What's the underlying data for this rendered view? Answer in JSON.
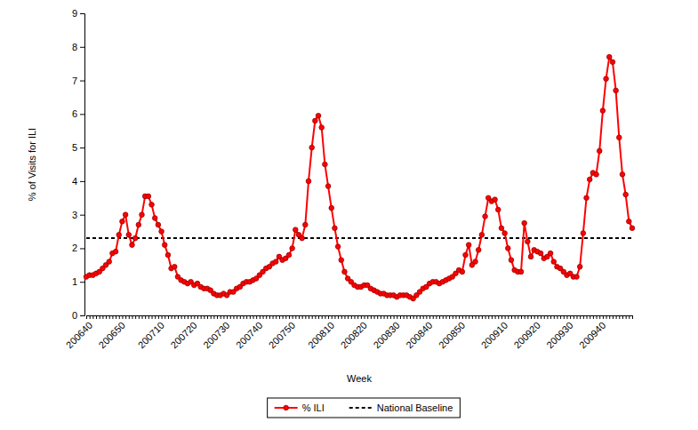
{
  "chart_data": {
    "type": "line",
    "x_label": "Week",
    "y_label": "% of Visits for ILI",
    "legend": "bottom",
    "grid": false,
    "ylim": [
      0,
      9
    ],
    "yticks": [
      0,
      1,
      2,
      3,
      4,
      5,
      6,
      7,
      8,
      9
    ],
    "categories": [
      "200640",
      null,
      null,
      null,
      null,
      null,
      null,
      null,
      null,
      null,
      "200650",
      null,
      null,
      null,
      null,
      null,
      null,
      null,
      null,
      null,
      null,
      null,
      "200710",
      null,
      null,
      null,
      null,
      null,
      null,
      null,
      null,
      null,
      "200720",
      null,
      null,
      null,
      null,
      null,
      null,
      null,
      null,
      null,
      "200730",
      null,
      null,
      null,
      null,
      null,
      null,
      null,
      null,
      null,
      "200740",
      null,
      null,
      null,
      null,
      null,
      null,
      null,
      null,
      null,
      "200750",
      null,
      null,
      null,
      null,
      null,
      null,
      null,
      null,
      null,
      null,
      null,
      "200810",
      null,
      null,
      null,
      null,
      null,
      null,
      null,
      null,
      null,
      "200820",
      null,
      null,
      null,
      null,
      null,
      null,
      null,
      null,
      null,
      "200830",
      null,
      null,
      null,
      null,
      null,
      null,
      null,
      null,
      null,
      "200840",
      null,
      null,
      null,
      null,
      null,
      null,
      null,
      null,
      null,
      "200850",
      null,
      null,
      null,
      null,
      null,
      null,
      null,
      null,
      null,
      null,
      null,
      null,
      "200910",
      null,
      null,
      null,
      null,
      null,
      null,
      null,
      null,
      null,
      "200920",
      null,
      null,
      null,
      null,
      null,
      null,
      null,
      null,
      null,
      "200930",
      null,
      null,
      null,
      null,
      null,
      null,
      null,
      null,
      null,
      "200940",
      null,
      null,
      null,
      null,
      null,
      null,
      null,
      null,
      null,
      null
    ],
    "series": [
      {
        "name": "% ILI",
        "color": "#ff0000",
        "marker": "circle",
        "line_style": "solid",
        "values": [
          1.15,
          1.2,
          1.2,
          1.25,
          1.3,
          1.4,
          1.5,
          1.6,
          1.85,
          1.9,
          2.4,
          2.8,
          3.0,
          2.4,
          2.1,
          2.3,
          2.7,
          3.0,
          3.55,
          3.55,
          3.3,
          2.9,
          2.7,
          2.5,
          2.1,
          1.8,
          1.4,
          1.45,
          1.15,
          1.05,
          1.0,
          0.95,
          1.0,
          0.9,
          0.95,
          0.85,
          0.8,
          0.8,
          0.75,
          0.65,
          0.6,
          0.6,
          0.65,
          0.6,
          0.7,
          0.7,
          0.8,
          0.85,
          0.95,
          1.0,
          1.0,
          1.05,
          1.1,
          1.2,
          1.3,
          1.4,
          1.45,
          1.55,
          1.6,
          1.75,
          1.65,
          1.7,
          1.8,
          2.0,
          2.55,
          2.4,
          2.3,
          2.7,
          4.0,
          5.0,
          5.8,
          5.95,
          5.6,
          4.5,
          3.85,
          3.2,
          2.6,
          2.05,
          1.65,
          1.3,
          1.1,
          1.0,
          0.9,
          0.85,
          0.85,
          0.9,
          0.9,
          0.8,
          0.75,
          0.7,
          0.65,
          0.65,
          0.6,
          0.6,
          0.6,
          0.55,
          0.6,
          0.6,
          0.6,
          0.55,
          0.5,
          0.6,
          0.7,
          0.8,
          0.85,
          0.95,
          1.0,
          1.0,
          0.95,
          1.0,
          1.05,
          1.1,
          1.15,
          1.25,
          1.35,
          1.3,
          1.8,
          2.1,
          1.5,
          1.6,
          1.95,
          2.4,
          2.95,
          3.5,
          3.4,
          3.45,
          3.15,
          2.6,
          2.45,
          2.0,
          1.65,
          1.35,
          1.3,
          1.3,
          2.75,
          2.2,
          1.75,
          1.95,
          1.9,
          1.85,
          1.7,
          1.75,
          1.85,
          1.6,
          1.45,
          1.4,
          1.3,
          1.2,
          1.25,
          1.15,
          1.15,
          1.45,
          2.45,
          3.5,
          4.05,
          4.25,
          4.2,
          4.9,
          6.1,
          7.05,
          7.7,
          7.55,
          6.7,
          5.3,
          4.2,
          3.6,
          2.8,
          2.6
        ]
      },
      {
        "name": "National Baseline",
        "color": "#000000",
        "marker": "none",
        "line_style": "dashed",
        "values": [
          2.3,
          2.3,
          2.3,
          2.3,
          2.3,
          2.3,
          2.3,
          2.3,
          2.3,
          2.3,
          2.3,
          2.3,
          2.3,
          2.3,
          2.3,
          2.3,
          2.3,
          2.3,
          2.3,
          2.3,
          2.3,
          2.3,
          2.3,
          2.3,
          2.3,
          2.3,
          2.3,
          2.3,
          2.3,
          2.3,
          2.3,
          2.3,
          2.3,
          2.3,
          2.3,
          2.3,
          2.3,
          2.3,
          2.3,
          2.3,
          2.3,
          2.3,
          2.3,
          2.3,
          2.3,
          2.3,
          2.3,
          2.3,
          2.3,
          2.3,
          2.3,
          2.3,
          2.3,
          2.3,
          2.3,
          2.3,
          2.3,
          2.3,
          2.3,
          2.3,
          2.3,
          2.3,
          2.3,
          2.3,
          2.3,
          2.3,
          2.3,
          2.3,
          2.3,
          2.3,
          2.3,
          2.3,
          2.3,
          2.3,
          2.3,
          2.3,
          2.3,
          2.3,
          2.3,
          2.3,
          2.3,
          2.3,
          2.3,
          2.3,
          2.3,
          2.3,
          2.3,
          2.3,
          2.3,
          2.3,
          2.3,
          2.3,
          2.3,
          2.3,
          2.3,
          2.3,
          2.3,
          2.3,
          2.3,
          2.3,
          2.3,
          2.3,
          2.3,
          2.3,
          2.3,
          2.3,
          2.3,
          2.3,
          2.3,
          2.3,
          2.3,
          2.3,
          2.3,
          2.3,
          2.3,
          2.3,
          2.3,
          2.3,
          2.3,
          2.3,
          2.3,
          2.3,
          2.3,
          2.3,
          2.3,
          2.3,
          2.3,
          2.3,
          2.3,
          2.3,
          2.3,
          2.3,
          2.3,
          2.3,
          2.3,
          2.3,
          2.3,
          2.3,
          2.3,
          2.3,
          2.3,
          2.3,
          2.3,
          2.3,
          2.3,
          2.3,
          2.3,
          2.3,
          2.3,
          2.3,
          2.3,
          2.3,
          2.3,
          2.3,
          2.3,
          2.3,
          2.3,
          2.3,
          2.3,
          2.3,
          2.3,
          2.3,
          2.3,
          2.3,
          2.3,
          2.3,
          2.3,
          2.3
        ]
      }
    ]
  }
}
